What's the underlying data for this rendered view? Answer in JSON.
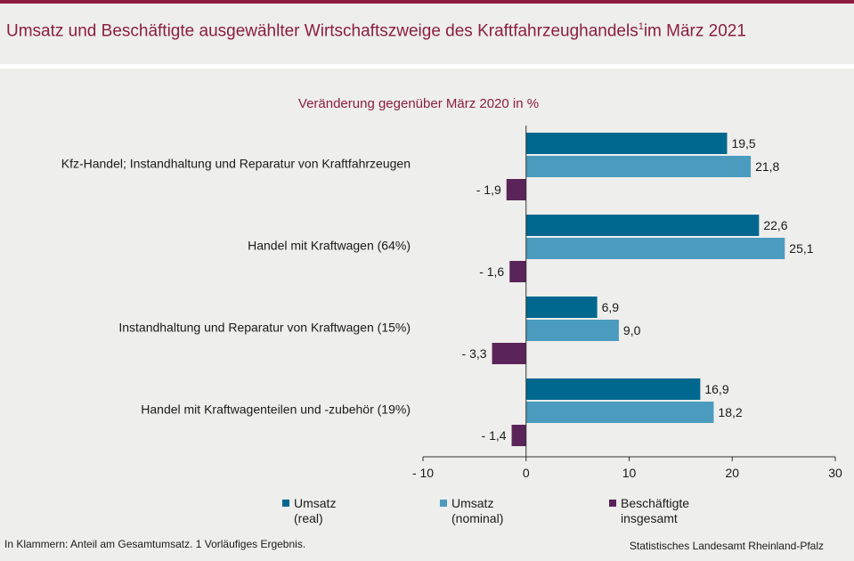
{
  "title": {
    "main": "Umsatz und Beschäftigte ausgewählter Wirtschaftszweige des Kraftfahrzeughandels",
    "footnote_mark": "1",
    "suffix": "im März 2021"
  },
  "footer": {
    "note": "In Klammern: Anteil am Gesamtumsatz. 1 Vorläufiges Ergebnis.",
    "source": "Statistisches Landesamt Rheinland-Pfalz"
  },
  "legend": [
    {
      "line1": "Umsatz",
      "line2": "(real)"
    },
    {
      "line1": "Umsatz",
      "line2": "(nominal)"
    },
    {
      "line1": "Beschäftigte",
      "line2": "insgesamt"
    }
  ],
  "chart_data": {
    "type": "bar",
    "orientation": "horizontal",
    "subtitle": "Veränderung gegenüber März 2020 in %",
    "categories": [
      "Kfz-Handel; Instandhaltung und Reparatur von Kraftfahrzeugen",
      "Handel mit Kraftwagen (64%)",
      "Instandhaltung und Reparatur von Kraftwagen (15%)",
      "Handel mit Kraftwagenteilen und -zubehör (19%)"
    ],
    "series": [
      {
        "name": "Umsatz (real)",
        "color": "#00688f",
        "values": [
          19.5,
          22.6,
          6.9,
          16.9
        ],
        "labels": [
          "19,5",
          "22,6",
          "6,9",
          "16,9"
        ]
      },
      {
        "name": "Umsatz (nominal)",
        "color": "#4b9bbf",
        "values": [
          21.8,
          25.1,
          9.0,
          18.2
        ],
        "labels": [
          "21,8",
          "25,1",
          "9,0",
          "18,2"
        ]
      },
      {
        "name": "Beschäftigte insgesamt",
        "color": "#5a2359",
        "values": [
          -1.9,
          -1.6,
          -3.3,
          -1.4
        ],
        "labels": [
          "- 1,9",
          "- 1,6",
          "- 3,3",
          "- 1,4"
        ]
      }
    ],
    "xlim": [
      -10,
      30
    ],
    "xticks": [
      -10,
      0,
      10,
      20,
      30
    ],
    "xtick_labels": [
      "- 10",
      "0",
      "10",
      "20",
      "30"
    ],
    "grid": false,
    "legend_position": "bottom"
  }
}
